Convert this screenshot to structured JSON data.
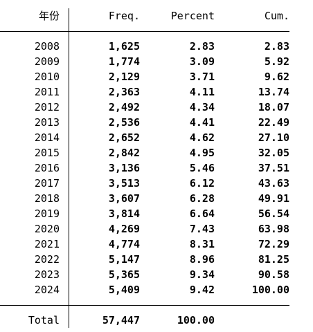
{
  "table": {
    "headers": {
      "year": "年份",
      "freq": "Freq.",
      "percent": "Percent",
      "cum": "Cum."
    },
    "rows": [
      {
        "year": "2008",
        "freq": "1,625",
        "percent": "2.83",
        "cum": "2.83"
      },
      {
        "year": "2009",
        "freq": "1,774",
        "percent": "3.09",
        "cum": "5.92"
      },
      {
        "year": "2010",
        "freq": "2,129",
        "percent": "3.71",
        "cum": "9.62"
      },
      {
        "year": "2011",
        "freq": "2,363",
        "percent": "4.11",
        "cum": "13.74"
      },
      {
        "year": "2012",
        "freq": "2,492",
        "percent": "4.34",
        "cum": "18.07"
      },
      {
        "year": "2013",
        "freq": "2,536",
        "percent": "4.41",
        "cum": "22.49"
      },
      {
        "year": "2014",
        "freq": "2,652",
        "percent": "4.62",
        "cum": "27.10"
      },
      {
        "year": "2015",
        "freq": "2,842",
        "percent": "4.95",
        "cum": "32.05"
      },
      {
        "year": "2016",
        "freq": "3,136",
        "percent": "5.46",
        "cum": "37.51"
      },
      {
        "year": "2017",
        "freq": "3,513",
        "percent": "6.12",
        "cum": "43.63"
      },
      {
        "year": "2018",
        "freq": "3,607",
        "percent": "6.28",
        "cum": "49.91"
      },
      {
        "year": "2019",
        "freq": "3,814",
        "percent": "6.64",
        "cum": "56.54"
      },
      {
        "year": "2020",
        "freq": "4,269",
        "percent": "7.43",
        "cum": "63.98"
      },
      {
        "year": "2021",
        "freq": "4,774",
        "percent": "8.31",
        "cum": "72.29"
      },
      {
        "year": "2022",
        "freq": "5,147",
        "percent": "8.96",
        "cum": "81.25"
      },
      {
        "year": "2023",
        "freq": "5,365",
        "percent": "9.34",
        "cum": "90.58"
      },
      {
        "year": "2024",
        "freq": "5,409",
        "percent": "9.42",
        "cum": "100.00"
      }
    ],
    "total": {
      "label": "Total",
      "freq": "57,447",
      "percent": "100.00"
    }
  }
}
